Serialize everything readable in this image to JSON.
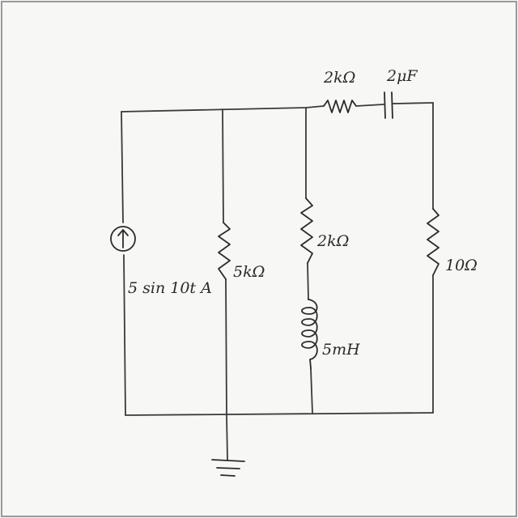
{
  "circuit": {
    "source_label": "5 sin 10t A",
    "resistor_5k_label": "5kΩ",
    "resistor_2k_mid_label": "2kΩ",
    "inductor_label": "5mH",
    "resistor_top_label": "2kΩ",
    "capacitor_label": "2μF",
    "resistor_right_label": "10Ω"
  },
  "colors": {
    "ink": "#2b2b2b",
    "paper": "#f7f7f6",
    "frame": "#9a9a9a"
  }
}
